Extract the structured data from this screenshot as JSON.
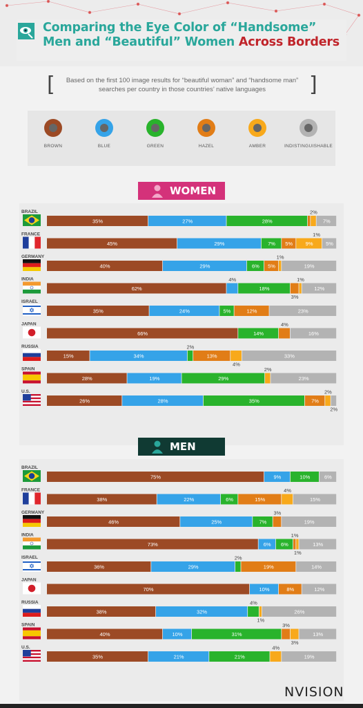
{
  "header": {
    "title_part1": "Comparing the Eye Color of “Handsome” Men and “Beautiful” Women ",
    "title_part2": "Across Borders",
    "subtitle": "Based on the first 100 image results for “beautiful woman” and “handsome man” searches per country in those countries’ native languages",
    "icon": "eye-magnifier-icon"
  },
  "colors": {
    "brown": "#9c4a25",
    "blue": "#35a3e8",
    "green": "#29b32c",
    "hazel": "#e17d17",
    "amber": "#f8a91b",
    "indistinguishable": "#b3b3b3",
    "accent_teal": "#2aa79b",
    "accent_red": "#c0242a",
    "women_banner": "#d4327a",
    "men_banner": "#103a33"
  },
  "legend": [
    {
      "key": "brown",
      "label": "BROWN"
    },
    {
      "key": "blue",
      "label": "BLUE"
    },
    {
      "key": "green",
      "label": "GREEN"
    },
    {
      "key": "hazel",
      "label": "HAZEL"
    },
    {
      "key": "amber",
      "label": "AMBER"
    },
    {
      "key": "indistinguishable",
      "label": "INDISTINGUISHABLE"
    }
  ],
  "chart_data": [
    {
      "type": "bar",
      "stacked": true,
      "orientation": "horizontal",
      "title": "WOMEN",
      "categories": [
        "BRAZIL",
        "FRANCE",
        "GERMANY",
        "INDIA",
        "ISRAEL",
        "JAPAN",
        "RUSSIA",
        "SPAIN",
        "U.S."
      ],
      "series_keys": [
        "brown",
        "blue",
        "green",
        "hazel",
        "amber",
        "indistinguishable"
      ],
      "values": [
        [
          35,
          27,
          28,
          1,
          2,
          7
        ],
        [
          45,
          29,
          7,
          5,
          9,
          5
        ],
        [
          40,
          29,
          6,
          5,
          1,
          19
        ],
        [
          62,
          4,
          18,
          3,
          1,
          12
        ],
        [
          35,
          24,
          5,
          12,
          0,
          23
        ],
        [
          66,
          0,
          14,
          4,
          0,
          16
        ],
        [
          15,
          34,
          2,
          13,
          4,
          33
        ],
        [
          28,
          19,
          29,
          0,
          2,
          23
        ],
        [
          26,
          28,
          35,
          7,
          2,
          2
        ]
      ],
      "labels": [
        [
          "35%",
          "27%",
          "28%",
          "",
          "2%",
          "7%"
        ],
        [
          "45%",
          "29%",
          "7%",
          "5%",
          "9%",
          "5%"
        ],
        [
          "40%",
          "29%",
          "6%",
          "5%",
          "1%",
          "19%"
        ],
        [
          "62%",
          "4%",
          "18%",
          "3%",
          "1%",
          "12%"
        ],
        [
          "35%",
          "24%",
          "5%",
          "12%",
          "",
          "23%"
        ],
        [
          "66%",
          "",
          "14%",
          "4%",
          "",
          "16%"
        ],
        [
          "15%",
          "34%",
          "2%",
          "13%",
          "4%",
          "33%"
        ],
        [
          "28%",
          "19%",
          "29%",
          "",
          "2%",
          "23%"
        ],
        [
          "26%",
          "28%",
          "35%",
          "7%",
          "2%",
          "2%"
        ]
      ],
      "extra_labels": [
        {
          "row": 1,
          "text": "1%",
          "pos": "above"
        }
      ],
      "xlim": [
        0,
        100
      ]
    },
    {
      "type": "bar",
      "stacked": true,
      "orientation": "horizontal",
      "title": "MEN",
      "categories": [
        "BRAZIL",
        "FRANCE",
        "GERMANY",
        "INDIA",
        "ISRAEL",
        "JAPAN",
        "RUSSIA",
        "SPAIN",
        "U.S."
      ],
      "series_keys": [
        "brown",
        "blue",
        "green",
        "hazel",
        "amber",
        "indistinguishable"
      ],
      "values": [
        [
          75,
          9,
          10,
          0,
          0,
          6
        ],
        [
          38,
          22,
          6,
          15,
          4,
          15
        ],
        [
          46,
          25,
          7,
          3,
          0,
          19
        ],
        [
          73,
          6,
          6,
          1,
          1,
          13
        ],
        [
          36,
          29,
          2,
          19,
          0,
          14
        ],
        [
          70,
          10,
          0,
          8,
          0,
          12
        ],
        [
          38,
          32,
          4,
          0,
          1,
          26
        ],
        [
          40,
          10,
          31,
          3,
          3,
          13
        ],
        [
          35,
          21,
          21,
          0,
          4,
          19
        ]
      ],
      "labels": [
        [
          "75%",
          "9%",
          "10%",
          "",
          "",
          "6%"
        ],
        [
          "38%",
          "22%",
          "6%",
          "15%",
          "4%",
          "15%"
        ],
        [
          "46%",
          "25%",
          "7%",
          "3%",
          "",
          "19%"
        ],
        [
          "73%",
          "6%",
          "6%",
          "1%",
          "1%",
          "13%"
        ],
        [
          "36%",
          "29%",
          "2%",
          "19%",
          "",
          "14%"
        ],
        [
          "70%",
          "10%",
          "",
          "8%",
          "",
          "12%"
        ],
        [
          "38%",
          "32%",
          "4%",
          "",
          "1%",
          "26%"
        ],
        [
          "40%",
          "10%",
          "31%",
          "3%",
          "3%",
          "13%"
        ],
        [
          "35%",
          "21%",
          "21%",
          "",
          "4%",
          "19%"
        ]
      ],
      "xlim": [
        0,
        100
      ]
    }
  ],
  "brand": "NVISION"
}
